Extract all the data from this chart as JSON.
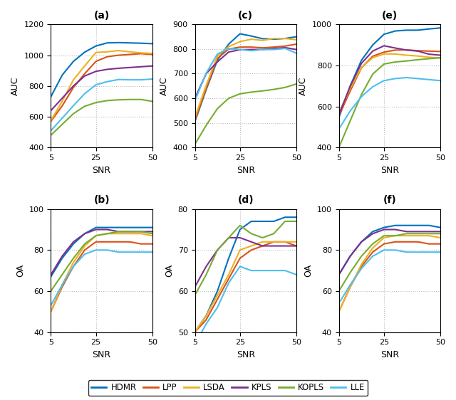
{
  "snr_ticks": [
    5,
    10,
    15,
    20,
    25,
    30,
    35,
    40,
    45,
    50
  ],
  "colors": {
    "HDMR": "#0072BD",
    "LPP": "#D95319",
    "LSDA": "#EDB120",
    "KPLS": "#7E2F8E",
    "KOPLS": "#77AC30",
    "LLE": "#4DBEEE"
  },
  "legend_order": [
    "HDMR",
    "LPP",
    "LSDA",
    "KPLS",
    "KOPLS",
    "LLE"
  ],
  "panel_a": {
    "title": "(a)",
    "ylabel": "AUC",
    "xlabel": "SNR",
    "ylim": [
      400,
      1200
    ],
    "yticks": [
      400,
      600,
      800,
      1000,
      1200
    ],
    "HDMR": [
      730,
      870,
      960,
      1020,
      1060,
      1080,
      1082,
      1080,
      1078,
      1075
    ],
    "LPP": [
      570,
      670,
      790,
      880,
      960,
      990,
      1000,
      1005,
      1010,
      1005
    ],
    "LSDA": [
      575,
      700,
      840,
      930,
      1018,
      1022,
      1030,
      1022,
      1015,
      1012
    ],
    "KPLS": [
      640,
      720,
      800,
      865,
      895,
      908,
      915,
      920,
      925,
      930
    ],
    "KOPLS": [
      480,
      550,
      620,
      668,
      692,
      705,
      710,
      712,
      712,
      700
    ],
    "LLE": [
      510,
      590,
      672,
      750,
      808,
      828,
      842,
      840,
      840,
      845
    ]
  },
  "panel_c": {
    "title": "(c)",
    "ylabel": "AUC",
    "xlabel": "SNR",
    "ylim": [
      400,
      900
    ],
    "yticks": [
      400,
      500,
      600,
      700,
      800,
      900
    ],
    "HDMR": [
      505,
      635,
      755,
      820,
      862,
      853,
      842,
      840,
      843,
      850
    ],
    "LPP": [
      510,
      640,
      762,
      800,
      808,
      808,
      805,
      808,
      812,
      820
    ],
    "LSDA": [
      522,
      652,
      772,
      810,
      830,
      840,
      835,
      843,
      843,
      838
    ],
    "KPLS": [
      600,
      700,
      748,
      788,
      797,
      798,
      798,
      802,
      806,
      798
    ],
    "KOPLS": [
      413,
      490,
      558,
      600,
      618,
      625,
      630,
      636,
      644,
      658
    ],
    "LLE": [
      590,
      702,
      780,
      802,
      798,
      793,
      798,
      798,
      803,
      783
    ]
  },
  "panel_e": {
    "title": "(e)",
    "ylabel": "AUC",
    "xlabel": "SNR",
    "ylim": [
      400,
      1000
    ],
    "yticks": [
      400,
      600,
      800,
      1000
    ],
    "HDMR": [
      545,
      700,
      825,
      900,
      952,
      968,
      972,
      972,
      978,
      983
    ],
    "LPP": [
      555,
      675,
      788,
      845,
      865,
      875,
      876,
      872,
      870,
      868
    ],
    "LSDA": [
      570,
      688,
      790,
      838,
      856,
      856,
      850,
      846,
      840,
      836
    ],
    "KPLS": [
      560,
      698,
      810,
      870,
      896,
      885,
      875,
      870,
      855,
      850
    ],
    "KOPLS": [
      400,
      530,
      658,
      758,
      807,
      817,
      822,
      828,
      833,
      838
    ],
    "LLE": [
      490,
      578,
      648,
      696,
      726,
      736,
      741,
      736,
      731,
      726
    ]
  },
  "panel_b": {
    "title": "(b)",
    "ylabel": "OA",
    "xlabel": "SNR",
    "ylim": [
      40,
      100
    ],
    "yticks": [
      40,
      60,
      80,
      100
    ],
    "HDMR": [
      67,
      76,
      83,
      88,
      91,
      91,
      91,
      91,
      91,
      91
    ],
    "LPP": [
      50,
      62,
      72,
      80,
      84,
      84,
      84,
      84,
      83,
      83
    ],
    "LSDA": [
      50,
      63,
      74,
      82,
      87,
      88,
      88,
      88,
      88,
      87
    ],
    "KPLS": [
      68,
      77,
      84,
      88,
      90,
      90,
      89,
      89,
      89,
      89
    ],
    "KOPLS": [
      60,
      68,
      76,
      83,
      87,
      88,
      89,
      89,
      89,
      88
    ],
    "LLE": [
      53,
      63,
      72,
      78,
      80,
      80,
      79,
      79,
      79,
      79
    ]
  },
  "panel_d": {
    "title": "(d)",
    "ylabel": "OA",
    "xlabel": "SNR",
    "ylim": [
      50,
      80
    ],
    "yticks": [
      50,
      60,
      70,
      80
    ],
    "HDMR": [
      50,
      54,
      60,
      68,
      75,
      77,
      77,
      77,
      78,
      78
    ],
    "LPP": [
      50,
      53,
      58,
      63,
      68,
      70,
      71,
      72,
      72,
      71
    ],
    "LSDA": [
      50,
      54,
      59,
      64,
      70,
      71,
      72,
      72,
      72,
      72
    ],
    "KPLS": [
      61,
      66,
      70,
      73,
      73,
      72,
      71,
      71,
      71,
      71
    ],
    "KOPLS": [
      59,
      64,
      70,
      73,
      76,
      74,
      73,
      74,
      77,
      77
    ],
    "LLE": [
      47,
      52,
      56,
      62,
      66,
      65,
      65,
      65,
      65,
      64
    ]
  },
  "panel_f": {
    "title": "(f)",
    "ylabel": "OA",
    "xlabel": "SNR",
    "ylim": [
      40,
      100
    ],
    "yticks": [
      40,
      60,
      80,
      100
    ],
    "HDMR": [
      68,
      77,
      84,
      89,
      91,
      92,
      92,
      92,
      92,
      91
    ],
    "LPP": [
      50,
      62,
      72,
      79,
      83,
      84,
      84,
      84,
      83,
      83
    ],
    "LSDA": [
      50,
      62,
      73,
      81,
      86,
      87,
      87,
      87,
      87,
      86
    ],
    "KPLS": [
      68,
      77,
      84,
      88,
      90,
      90,
      89,
      89,
      89,
      89
    ],
    "KOPLS": [
      60,
      69,
      77,
      83,
      87,
      87,
      88,
      88,
      88,
      88
    ],
    "LLE": [
      54,
      63,
      71,
      77,
      80,
      80,
      79,
      79,
      79,
      79
    ]
  }
}
